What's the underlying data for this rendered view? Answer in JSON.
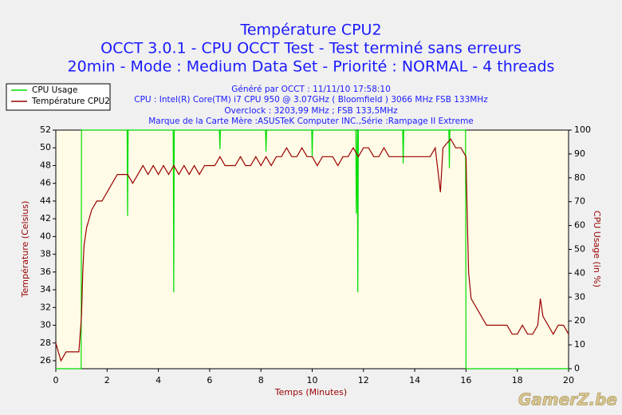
{
  "chart_data": {
    "type": "line",
    "title": "Température CPU2",
    "subtitle_lines": [
      "OCCT 3.0.1 - CPU OCCT Test - Test terminé sans erreurs",
      "20min - Mode : Medium Data Set - Priorité : NORMAL - 4 threads"
    ],
    "info_lines": [
      "Généré par OCCT : 11/11/10 17:58:10",
      "CPU : Intel(R) Core(TM) i7 CPU 950 @ 3.07GHz ( Bloomfield ) 3066 MHz FSB 133MHz",
      "Overclock : 3203,99 MHz ; FSB 133,5MHz",
      "Marque de la Carte Mère :ASUSTeK Computer INC.,Série :Rampage II Extreme"
    ],
    "xlabel": "Temps (Minutes)",
    "ylabel": "Température (Celsius)",
    "y2label": "CPU Usage (in %)",
    "watermark": "GamerZ.be",
    "xlim": [
      0,
      20
    ],
    "xticks": [
      0,
      2,
      4,
      6,
      8,
      10,
      12,
      14,
      16,
      18,
      20
    ],
    "ylim": [
      25.1,
      52
    ],
    "yticks": [
      26,
      28,
      30,
      32,
      34,
      36,
      38,
      40,
      42,
      44,
      46,
      48,
      50,
      52
    ],
    "y2lim": [
      0,
      100
    ],
    "y2ticks": [
      0,
      10,
      20,
      30,
      40,
      50,
      60,
      70,
      80,
      90,
      100
    ],
    "legend": "top-left",
    "series": [
      {
        "name": "CPU Usage",
        "color": "#00dd00",
        "axis": "y2",
        "x": [
          0,
          0.99,
          1.0,
          2.78,
          2.8,
          2.82,
          4.58,
          4.6,
          4.62,
          6.38,
          6.4,
          6.42,
          8.18,
          8.2,
          8.22,
          9.98,
          10,
          10.02,
          11.7,
          11.72,
          11.76,
          11.78,
          11.8,
          13.53,
          13.55,
          13.57,
          15.33,
          15.35,
          15.37,
          15.98,
          16,
          20
        ],
        "values": [
          0,
          0,
          100,
          100,
          64,
          100,
          100,
          32,
          100,
          100,
          92,
          100,
          100,
          91,
          100,
          100,
          89,
          100,
          100,
          65,
          100,
          32,
          100,
          100,
          86,
          100,
          100,
          84,
          100,
          100,
          0,
          0
        ]
      },
      {
        "name": "Température CPU2",
        "color": "#990000",
        "x": [
          0,
          0.1,
          0.2,
          0.4,
          0.6,
          0.9,
          1.0,
          1.05,
          1.1,
          1.2,
          1.4,
          1.6,
          1.8,
          2.0,
          2.2,
          2.4,
          2.6,
          2.8,
          3.0,
          3.2,
          3.4,
          3.6,
          3.8,
          4.0,
          4.2,
          4.4,
          4.6,
          4.8,
          5.0,
          5.2,
          5.4,
          5.6,
          5.8,
          6.0,
          6.2,
          6.4,
          6.6,
          6.8,
          7.0,
          7.2,
          7.4,
          7.6,
          7.8,
          8.0,
          8.2,
          8.4,
          8.6,
          8.8,
          9.0,
          9.2,
          9.4,
          9.6,
          9.8,
          10.0,
          10.2,
          10.4,
          10.6,
          10.8,
          11.0,
          11.2,
          11.4,
          11.6,
          11.8,
          12.0,
          12.2,
          12.4,
          12.6,
          12.8,
          13.0,
          13.2,
          13.4,
          13.6,
          13.8,
          14.0,
          14.2,
          14.4,
          14.6,
          14.8,
          15.0,
          15.1,
          15.4,
          15.6,
          15.8,
          16.0,
          16.05,
          16.1,
          16.2,
          16.4,
          16.6,
          16.8,
          17.0,
          17.2,
          17.4,
          17.6,
          17.8,
          18.0,
          18.2,
          18.4,
          18.6,
          18.8,
          18.9,
          19.0,
          19.2,
          19.4,
          19.6,
          19.8,
          20
        ],
        "values": [
          28,
          27,
          26,
          27,
          27,
          27,
          31,
          36,
          39,
          41,
          43,
          44,
          44,
          45,
          46,
          47,
          47,
          47,
          46,
          47,
          48,
          47,
          48,
          47,
          48,
          47,
          48,
          47,
          48,
          47,
          48,
          47,
          48,
          48,
          48,
          49,
          48,
          48,
          48,
          49,
          48,
          48,
          49,
          48,
          49,
          48,
          49,
          49,
          50,
          49,
          49,
          50,
          49,
          49,
          48,
          49,
          49,
          49,
          48,
          49,
          49,
          50,
          49,
          50,
          50,
          49,
          49,
          50,
          49,
          49,
          49,
          49,
          49,
          49,
          49,
          49,
          49,
          50,
          45,
          50,
          51,
          50,
          50,
          49,
          42,
          36,
          33,
          32,
          31,
          30,
          30,
          30,
          30,
          30,
          29,
          29,
          30,
          29,
          29,
          30,
          33,
          31,
          30,
          29,
          30,
          30,
          29
        ]
      }
    ]
  }
}
